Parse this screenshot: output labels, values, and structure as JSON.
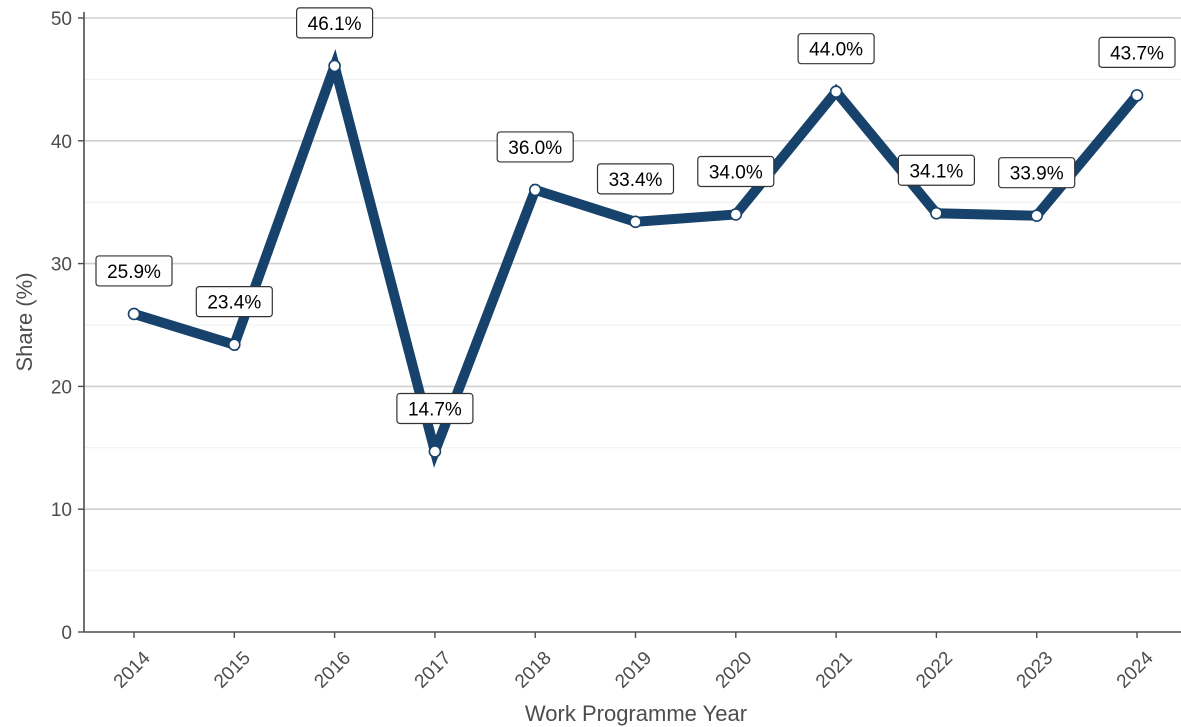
{
  "chart_data": {
    "type": "line",
    "title": "",
    "xlabel": "Work Programme Year",
    "ylabel": "Share (%)",
    "ylim": [
      0,
      50
    ],
    "yticks": [
      0,
      10,
      20,
      30,
      40,
      50
    ],
    "grid": "horizontal",
    "legend": "none",
    "x": [
      "2014",
      "2015",
      "2016",
      "2017",
      "2018",
      "2019",
      "2020",
      "2021",
      "2022",
      "2023",
      "2024"
    ],
    "series": [
      {
        "name": "",
        "values": [
          25.9,
          23.4,
          46.1,
          14.7,
          36.0,
          33.4,
          34.0,
          44.0,
          34.1,
          33.9,
          43.7
        ],
        "labels": [
          "25.9%",
          "23.4%",
          "46.1%",
          "14.7%",
          "36.0%",
          "33.4%",
          "34.0%",
          "44.0%",
          "34.1%",
          "33.9%",
          "43.7%"
        ],
        "color": "#16426b",
        "marker_fill": "#ffffff"
      }
    ]
  }
}
